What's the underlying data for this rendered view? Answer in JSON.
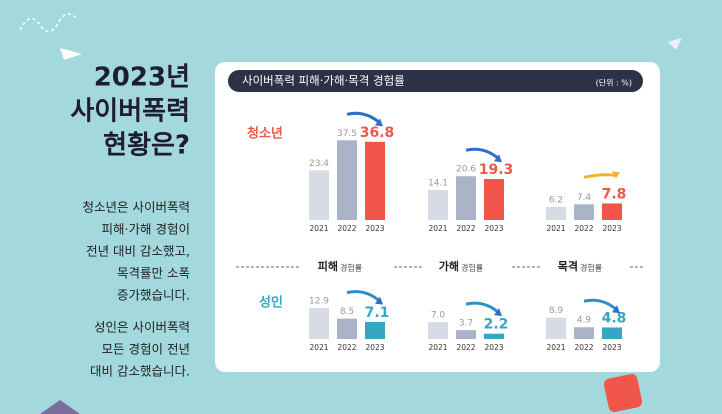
{
  "headline": [
    "2023년",
    "사이버폭력",
    "현황은?"
  ],
  "paragraphs": [
    [
      "청소년은 사이버폭력",
      "피해·가해 경험이",
      "전년 대비 감소했고,",
      "목격률만 소폭",
      "증가했습니다."
    ],
    [
      "성인은 사이버폭력",
      "모든 경험이 전년",
      "대비 감소했습니다."
    ]
  ],
  "panel": {
    "title": "사이버폭력 피해·가해·목격 경험률",
    "unit": "(단위 : %)"
  },
  "groups": [
    "청소년",
    "성인"
  ],
  "columns": [
    {
      "name": "피해",
      "suffix": "경험률"
    },
    {
      "name": "가해",
      "suffix": "경험률"
    },
    {
      "name": "목격",
      "suffix": "경험률"
    }
  ],
  "chart_data": [
    {
      "type": "bar",
      "categories": [
        "2021",
        "2022",
        "2023"
      ],
      "values": [
        23.4,
        37.5,
        36.8
      ],
      "colors": [
        "#d6dbe6",
        "#aab3c8",
        "#f0574a"
      ],
      "ylim": [
        0,
        40
      ]
    },
    {
      "type": "bar",
      "categories": [
        "2021",
        "2022",
        "2023"
      ],
      "values": [
        14.1,
        20.6,
        19.3
      ],
      "colors": [
        "#d6dbe6",
        "#aab3c8",
        "#f0574a"
      ],
      "ylim": [
        0,
        40
      ]
    },
    {
      "type": "bar",
      "categories": [
        "2021",
        "2022",
        "2023"
      ],
      "values": [
        6.2,
        7.4,
        7.8
      ],
      "colors": [
        "#d6dbe6",
        "#aab3c8",
        "#f0574a"
      ],
      "ylim": [
        0,
        40
      ]
    },
    {
      "type": "bar",
      "categories": [
        "2021",
        "2022",
        "2023"
      ],
      "values": [
        12.9,
        8.5,
        7.1
      ],
      "colors": [
        "#d6dbe6",
        "#aab3c8",
        "#37a6c4"
      ],
      "ylim": [
        0,
        15
      ]
    },
    {
      "type": "bar",
      "categories": [
        "2021",
        "2022",
        "2023"
      ],
      "values": [
        7,
        3.7,
        2.2
      ],
      "value_labels": [
        "7.0",
        "3.7",
        "2.2"
      ],
      "colors": [
        "#d6dbe6",
        "#aab3c8",
        "#37a6c4"
      ],
      "ylim": [
        0,
        15
      ]
    },
    {
      "type": "bar",
      "categories": [
        "2021",
        "2022",
        "2023"
      ],
      "values": [
        8.9,
        4.9,
        4.8
      ],
      "colors": [
        "#d6dbe6",
        "#aab3c8",
        "#37a6c4"
      ],
      "ylim": [
        0,
        15
      ]
    }
  ]
}
